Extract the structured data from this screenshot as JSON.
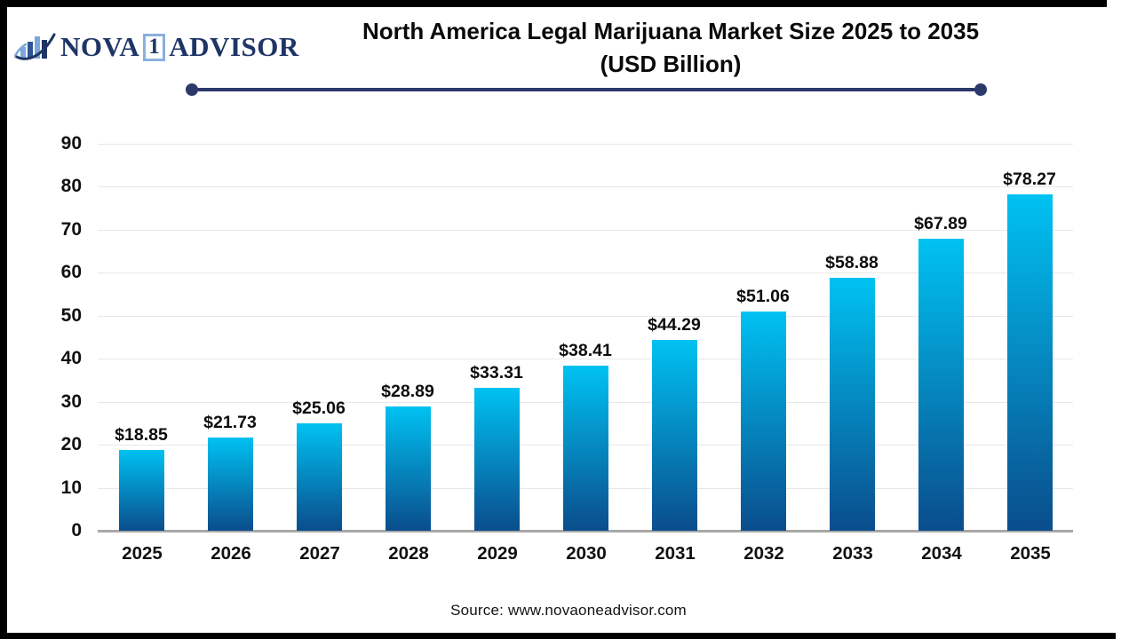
{
  "logo": {
    "nova": "NOVA",
    "one": "1",
    "advisor": "ADVISOR"
  },
  "title": {
    "line1": "North America Legal Marijuana Market Size 2025 to 2035",
    "line2": "(USD Billion)"
  },
  "source": "Source: www.novaoneadvisor.com",
  "colors": {
    "bar_top": "#00c2f2",
    "bar_bottom": "#0a4d8c",
    "divider": "#2b3a6b",
    "logo_navy": "#1f3566",
    "logo_lightblue": "#7da7d8",
    "gridline": "#e8e8e8",
    "axis_line": "#a8a8a8"
  },
  "chart_data": {
    "type": "bar",
    "title": "North America Legal Marijuana Market Size 2025 to 2035 (USD Billion)",
    "categories": [
      "2025",
      "2026",
      "2027",
      "2028",
      "2029",
      "2030",
      "2031",
      "2032",
      "2033",
      "2034",
      "2035"
    ],
    "values": [
      18.85,
      21.73,
      25.06,
      28.89,
      33.31,
      38.41,
      44.29,
      51.06,
      58.88,
      67.89,
      78.27
    ],
    "bar_labels": [
      "$18.85",
      "$21.73",
      "$25.06",
      "$28.89",
      "$33.31",
      "$38.41",
      "$44.29",
      "$51.06",
      "$58.88",
      "$67.89",
      "$78.27"
    ],
    "xlabel": "",
    "ylabel": "",
    "ylim": [
      0,
      90
    ],
    "yticks": [
      0,
      10,
      20,
      30,
      40,
      50,
      60,
      70,
      80,
      90
    ],
    "grid": true,
    "legend": false
  }
}
